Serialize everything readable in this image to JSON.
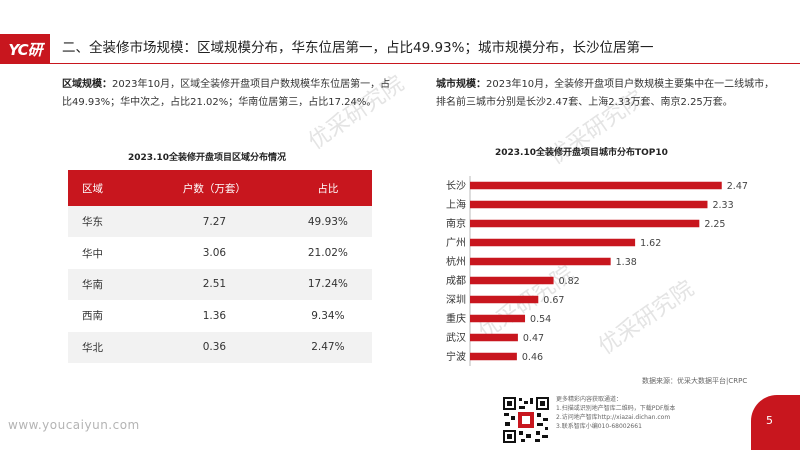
{
  "header": {
    "logo_text": "YC研",
    "title": "二、全装修市场规模：区域规模分布，华东位居第一，占比49.93%；城市规模分布，长沙位居第一"
  },
  "region_para": {
    "label": "区域规模：",
    "text": "2023年10月，区域全装修开盘项目户数规模华东位居第一，占比49.93%；华中次之，占比21.02%；华南位居第三，占比17.24%。"
  },
  "city_para": {
    "label": "城市规模：",
    "text": "2023年10月，全装修开盘项目户数规模主要集中在一二线城市，排名前三城市分别是长沙2.47套、上海2.33万套、南京2.25万套。"
  },
  "table": {
    "title": "2023.10全装修开盘项目区域分布情况",
    "headers": [
      "区域",
      "户数（万套）",
      "占比"
    ],
    "rows": [
      [
        "华东",
        "7.27",
        "49.93%"
      ],
      [
        "华中",
        "3.06",
        "21.02%"
      ],
      [
        "华南",
        "2.51",
        "17.24%"
      ],
      [
        "西南",
        "1.36",
        "9.34%"
      ],
      [
        "华北",
        "0.36",
        "2.47%"
      ]
    ]
  },
  "chart_data": {
    "type": "bar",
    "orientation": "horizontal",
    "title": "2023.10全装修开盘项目城市分布TOP10",
    "categories": [
      "长沙",
      "上海",
      "南京",
      "广州",
      "杭州",
      "成都",
      "深圳",
      "重庆",
      "武汉",
      "宁波"
    ],
    "values": [
      2.47,
      2.33,
      2.25,
      1.62,
      1.38,
      0.82,
      0.67,
      0.54,
      0.47,
      0.46
    ],
    "value_labels": [
      "2.47",
      "2.33",
      "2.25",
      "1.62",
      "1.38",
      "0.82",
      "0.67",
      "0.54",
      "0.47",
      "0.46"
    ],
    "xlim": [
      0,
      2.6
    ],
    "bar_color": "#c8161e",
    "grid": false
  },
  "source": "数据来源：优采大数据平台|CRPC",
  "info": {
    "lines": [
      "更多精彩内容获取通道：",
      "1.扫描或识别地产智库二维码，下载PDF版本",
      "2.访问地产智库http://xiazai.dichan.com",
      "3.联系智库小编010-68002661"
    ]
  },
  "page_number": "5",
  "footer_url": "www.youcaiyun.com",
  "watermark": "优采研究院",
  "colors": {
    "brand_red": "#c8161e",
    "row_alt": "#f2f2f2"
  }
}
